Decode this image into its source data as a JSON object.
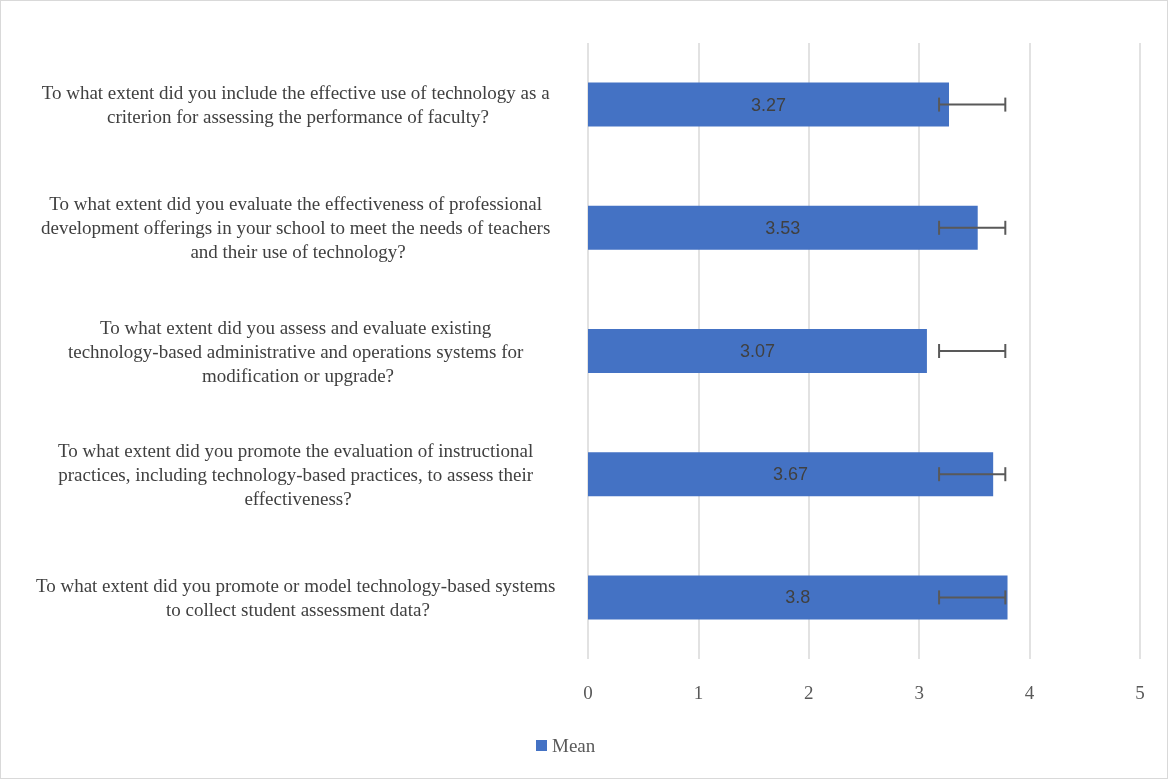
{
  "chart_data": {
    "type": "bar",
    "orientation": "horizontal",
    "categories": [
      "To what extent did you include the effective use of technology as a criterion for assessing the performance of faculty?",
      "To what extent did you evaluate the effectiveness of professional development offerings in your school to meet the needs of teachers and their use of technology?",
      "To what extent did you assess and evaluate existing technology-based administrative and operations systems for modification or upgrade?",
      "To what extent did you promote the evaluation of instructional practices, including technology-based practices, to assess their effectiveness?",
      "To what extent did you promote or model technology-based systems to collect student assessment data?"
    ],
    "series": [
      {
        "name": "Mean",
        "color": "#4472c4",
        "values": [
          3.27,
          3.53,
          3.07,
          3.67,
          3.8
        ],
        "errors": [
          [
            3.18,
            3.78
          ],
          [
            3.18,
            3.78
          ],
          [
            3.18,
            3.78
          ],
          [
            3.18,
            3.78
          ],
          [
            3.18,
            3.78
          ]
        ]
      }
    ],
    "data_labels": true,
    "xlim": [
      0,
      5
    ],
    "xticks": [
      0,
      1,
      2,
      3,
      4,
      5
    ],
    "grid": "x",
    "legend": "bottom left"
  }
}
